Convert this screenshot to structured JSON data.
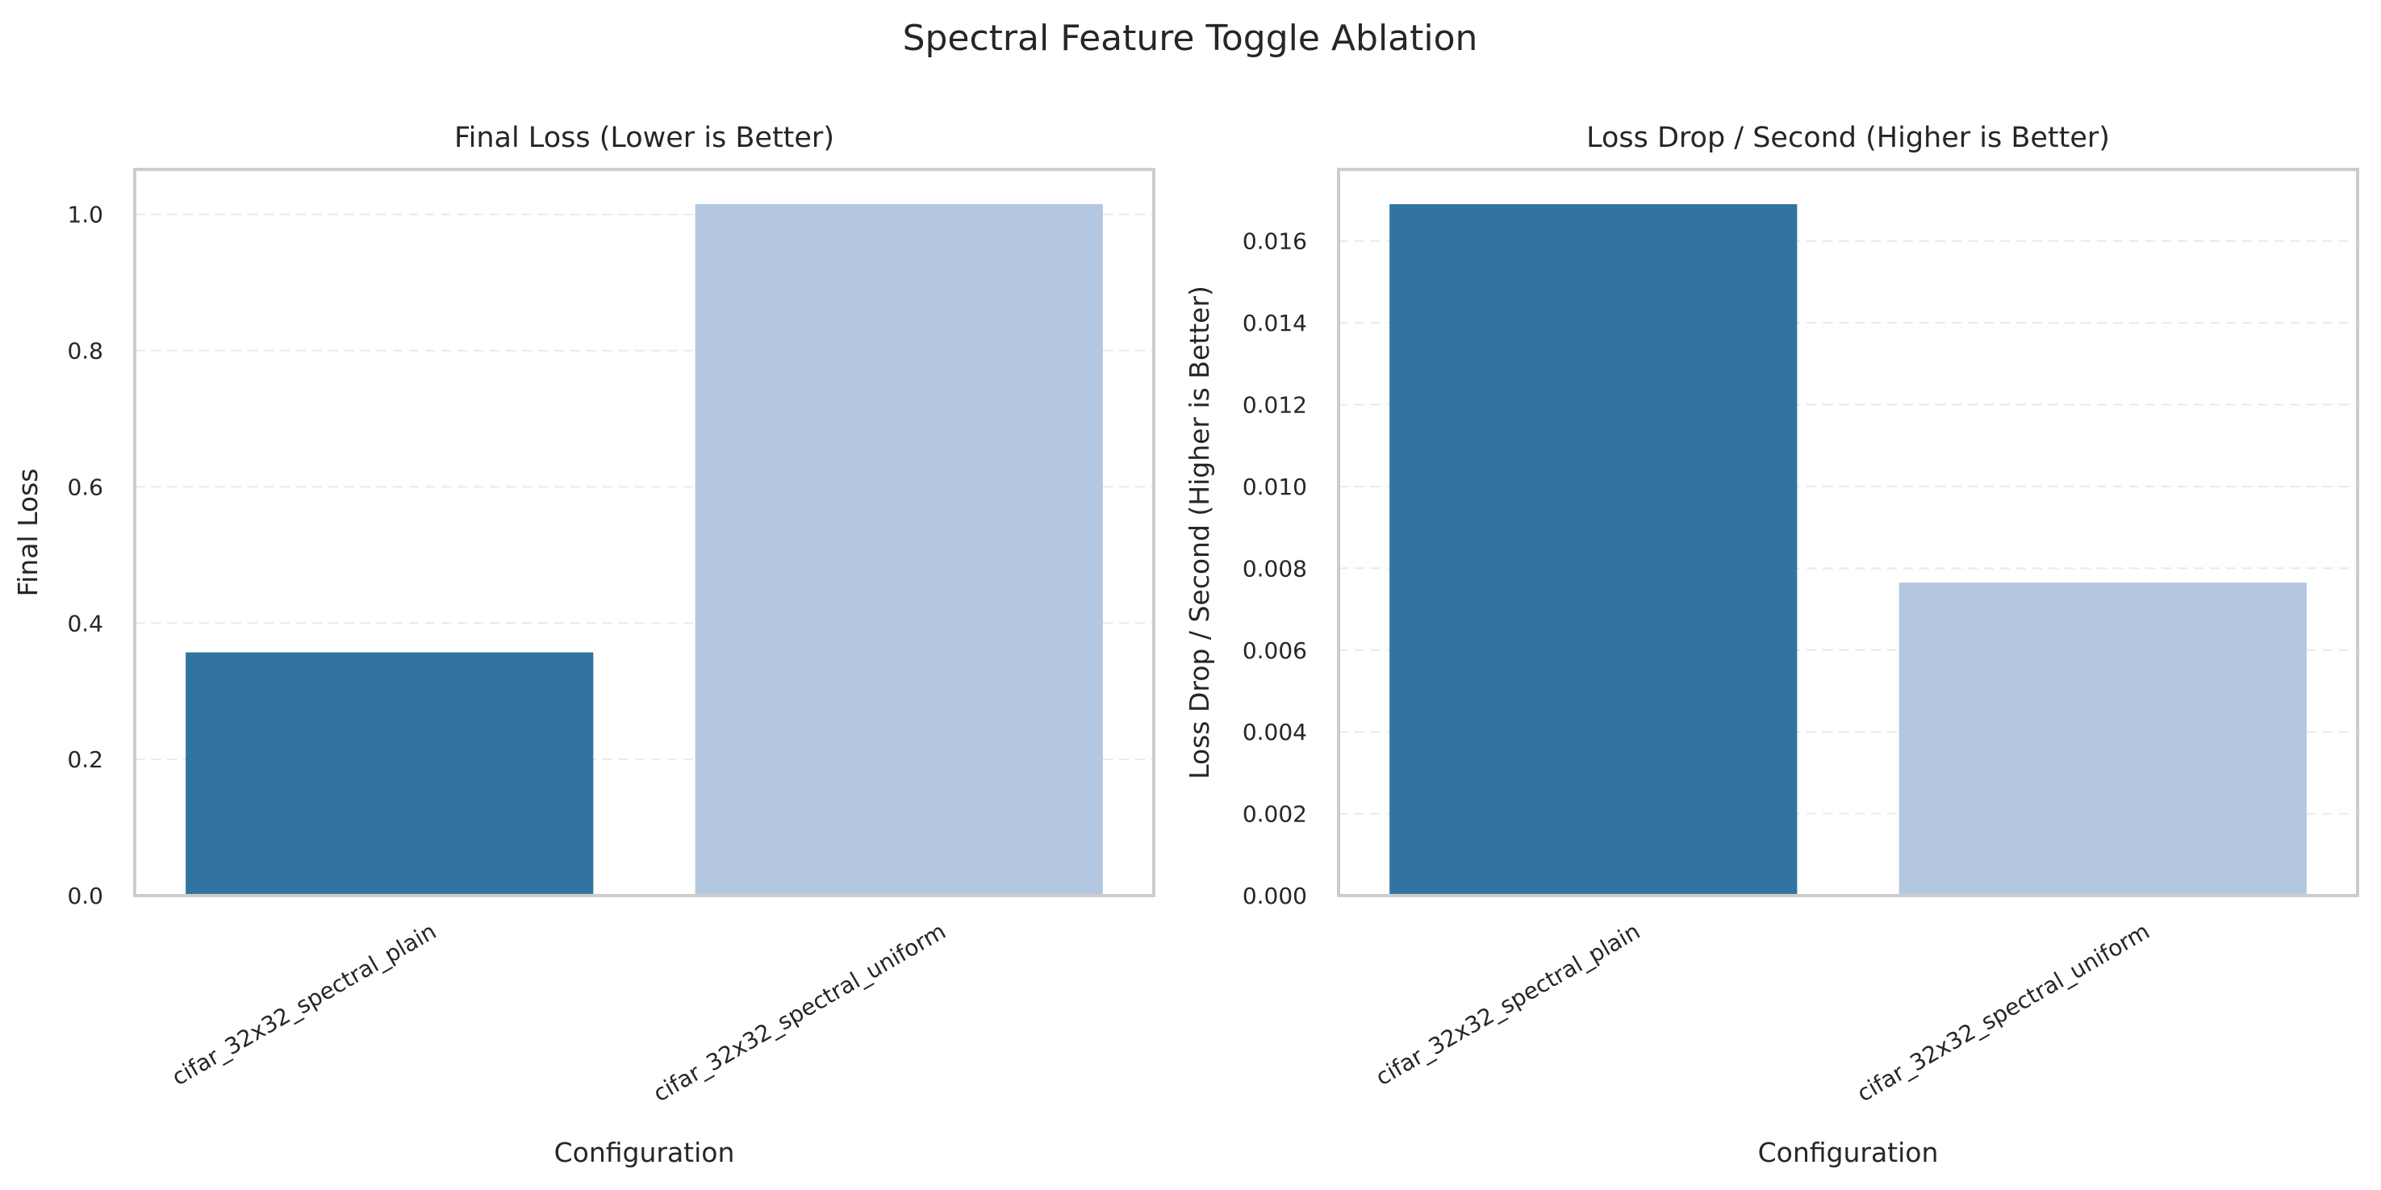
{
  "figure": {
    "suptitle": "Spectral Feature Toggle Ablation"
  },
  "colors": {
    "series": [
      "#3274a1",
      "#b3c7e1"
    ],
    "grid": "#e9e9e9",
    "frame": "#cccccc",
    "text": "#262626"
  },
  "chart_data": [
    {
      "type": "bar",
      "title": "Final Loss (Lower is Better)",
      "xlabel": "Configuration",
      "ylabel": "Final Loss",
      "categories": [
        "cifar_32x32_spectral_plain",
        "cifar_32x32_spectral_uniform"
      ],
      "values": [
        0.357,
        1.015
      ],
      "ylim": [
        0,
        1.066
      ],
      "yticks": [
        0.0,
        0.2,
        0.4,
        0.6,
        0.8,
        1.0
      ],
      "ytick_labels": [
        "0.0",
        "0.2",
        "0.4",
        "0.6",
        "0.8",
        "1.0"
      ],
      "grid": true
    },
    {
      "type": "bar",
      "title": "Loss Drop / Second (Higher is Better)",
      "xlabel": "Configuration",
      "ylabel": "Loss Drop / Second (Higher is Better)",
      "categories": [
        "cifar_32x32_spectral_plain",
        "cifar_32x32_spectral_uniform"
      ],
      "values": [
        0.0169,
        0.00765
      ],
      "ylim": [
        0,
        0.01775
      ],
      "yticks": [
        0.0,
        0.002,
        0.004,
        0.006,
        0.008,
        0.01,
        0.012,
        0.014,
        0.016
      ],
      "ytick_labels": [
        "0.000",
        "0.002",
        "0.004",
        "0.006",
        "0.008",
        "0.010",
        "0.012",
        "0.014",
        "0.016"
      ],
      "grid": true
    }
  ]
}
